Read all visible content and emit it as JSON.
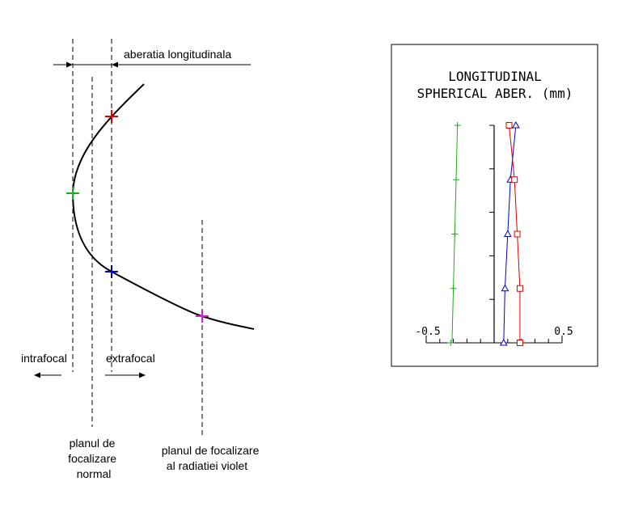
{
  "left_diagram": {
    "aberration_label": "aberatia longitudinala",
    "intrafocal_label": "intrafocal",
    "extrafocal_label": "extrafocal",
    "normal_plane_label": [
      "planul de",
      "focalizare",
      "normal"
    ],
    "violet_plane_label": [
      "planul de focalizare",
      "al radiatiei violet"
    ],
    "marker_colors": {
      "red": "#e00000",
      "green": "#22aa22",
      "blue": "#0000cc",
      "magenta": "#cc22cc"
    }
  },
  "right_chart": {
    "title_line1": "LONGITUDINAL",
    "title_line2": "SPHERICAL ABER. (mm)",
    "x_min_label": "-0.5",
    "x_max_label": "0.5",
    "chart_data": {
      "type": "line",
      "title": "LONGITUDINAL SPHERICAL ABER. (mm)",
      "xlabel": "",
      "ylabel": "",
      "xlim": [
        -0.5,
        0.5
      ],
      "ylim": [
        0,
        1
      ],
      "series": [
        {
          "color": "#22aa22",
          "marker": "plus",
          "x": [
            -0.27,
            -0.28,
            -0.29,
            -0.3,
            -0.31,
            -0.32
          ],
          "y": [
            1.0,
            0.75,
            0.5,
            0.25,
            0.0,
            0.0
          ]
        },
        {
          "color": "#0000cc",
          "marker": "triangle",
          "x": [
            0.16,
            0.12,
            0.1,
            0.08,
            0.07,
            0.07
          ],
          "y": [
            1.0,
            0.75,
            0.5,
            0.25,
            0.0,
            0.0
          ]
        },
        {
          "color": "#e00000",
          "marker": "square",
          "x": [
            0.11,
            0.15,
            0.17,
            0.19,
            0.19,
            0.19
          ],
          "y": [
            1.0,
            0.75,
            0.5,
            0.25,
            0.0,
            0.0
          ]
        }
      ]
    }
  }
}
